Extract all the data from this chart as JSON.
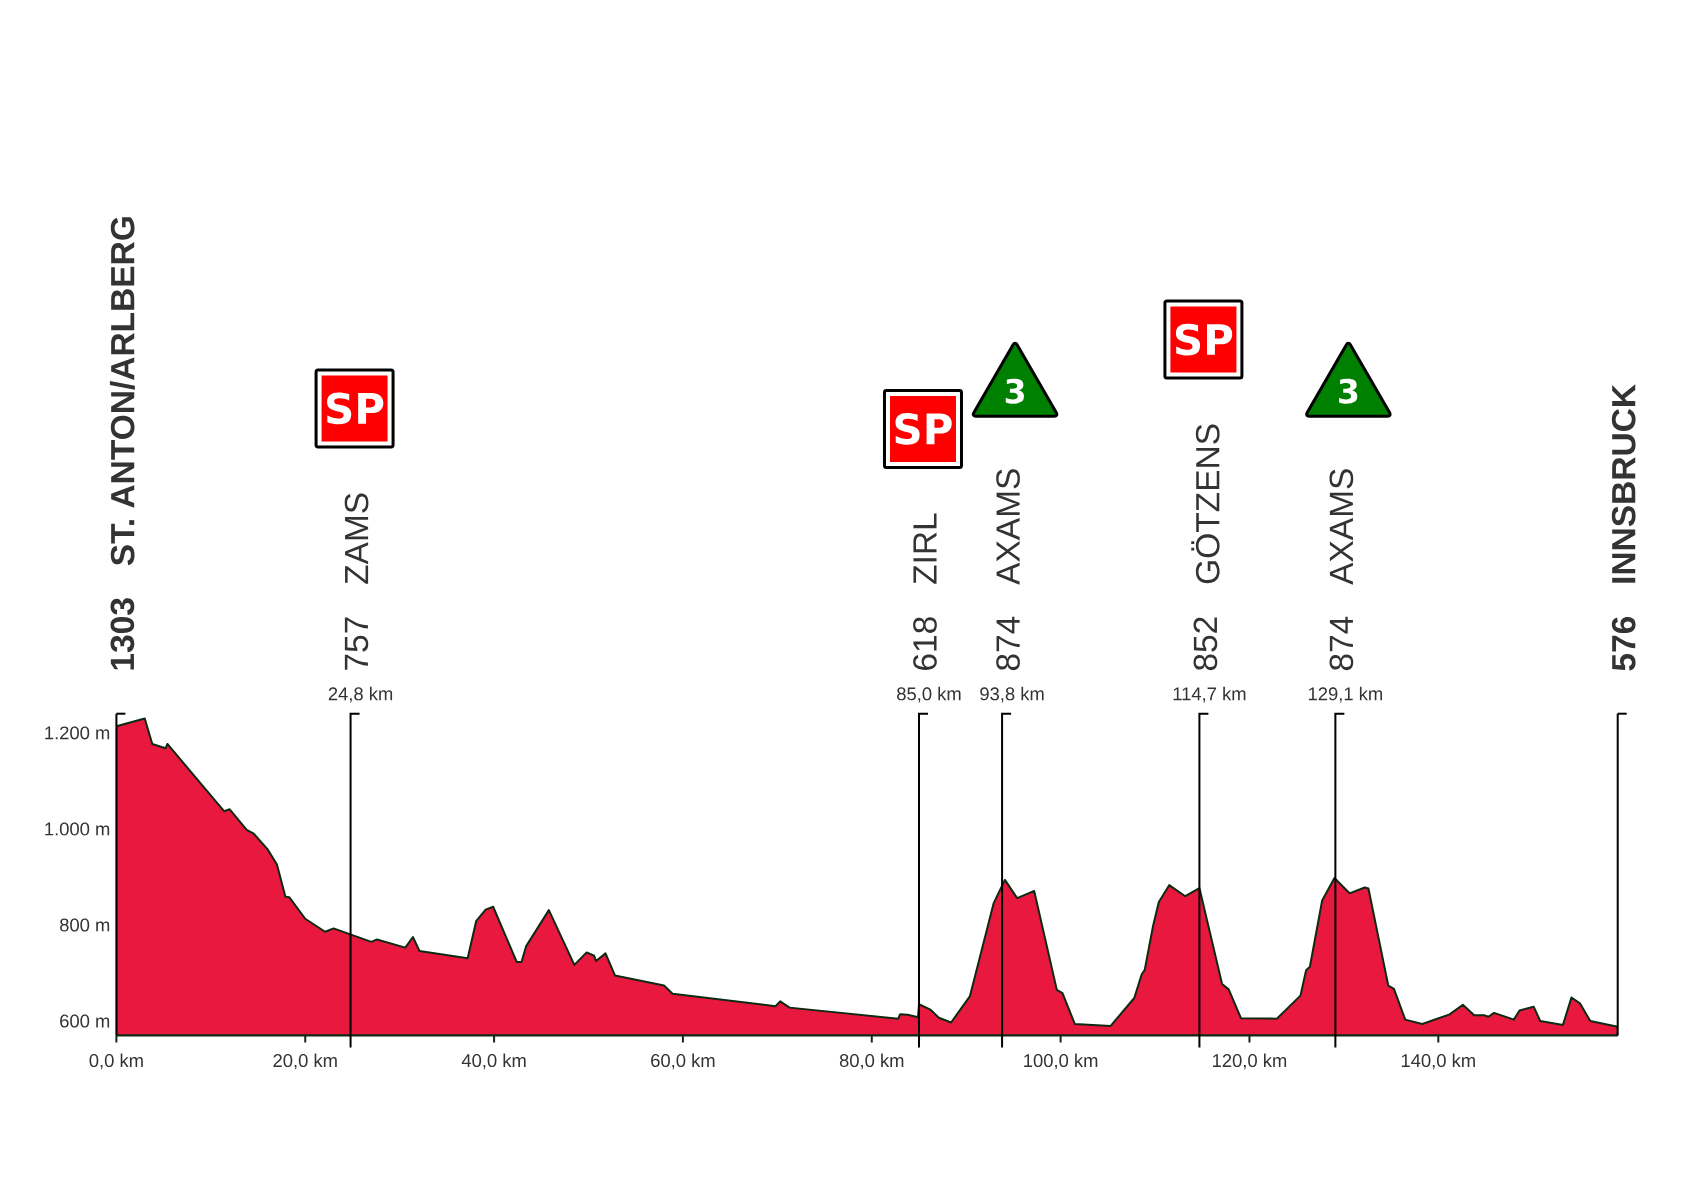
{
  "chart_data": {
    "type": "area",
    "color": "#e8183f",
    "x": [
      0,
      3.0,
      3.8,
      5.2,
      5.4,
      11.4,
      12.0,
      13.8,
      14.5,
      16.0,
      17.0,
      17.9,
      18.3,
      20.0,
      22.1,
      23.0,
      27.0,
      27.6,
      30.6,
      31.4,
      32.1,
      37.2,
      38.1,
      39.1,
      39.9,
      42.4,
      42.9,
      43.4,
      45.8,
      48.5,
      49.8,
      50.6,
      50.8,
      51.8,
      52.8,
      58.0,
      58.9,
      69.8,
      70.3,
      71.3,
      82.8,
      83.0,
      83.8,
      84.9,
      85.0,
      86.2,
      87.1,
      88.4,
      90.4,
      92.9,
      94.1,
      95.4,
      97.2,
      99.6,
      100.2,
      101.5,
      105.3,
      107.8,
      108.6,
      108.9,
      109.8,
      110.4,
      111.5,
      113.2,
      114.7,
      117.1,
      117.8,
      119.1,
      122.9,
      125.4,
      126.0,
      126.4,
      127.7,
      129.0,
      130.6,
      132.2,
      132.6,
      134.7,
      135.3,
      136.5,
      138.3,
      141.2,
      142.6,
      143.8,
      144.9,
      145.3,
      145.9,
      148.0,
      148.6,
      150.1,
      150.8,
      153.2,
      154.1,
      155.0,
      156.1,
      159
    ],
    "values": [
      1214,
      1230,
      1177,
      1168,
      1177,
      1037,
      1041,
      998,
      991,
      958,
      926,
      859,
      858,
      813,
      786,
      793,
      765,
      770,
      753,
      775,
      746,
      731,
      808,
      832,
      838,
      723,
      723,
      756,
      831,
      717,
      743,
      736,
      725,
      741,
      695,
      674,
      657,
      631,
      641,
      628,
      605,
      614,
      613,
      608,
      635,
      624,
      607,
      597,
      652,
      845,
      894,
      856,
      871,
      665,
      658,
      594,
      590,
      648,
      698,
      706,
      799,
      848,
      883,
      860,
      877,
      677,
      666,
      606,
      605,
      653,
      706,
      713,
      851,
      898,
      866,
      878,
      876,
      674,
      667,
      603,
      594,
      614,
      634,
      612,
      612,
      609,
      617,
      603,
      622,
      630,
      600,
      592,
      649,
      637,
      600,
      588
    ],
    "xlim": [
      0,
      159
    ],
    "ylim": [
      570,
      1240
    ],
    "xticks": [
      {
        "value": 0,
        "label": "0,0 km"
      },
      {
        "value": 20,
        "label": "20,0 km"
      },
      {
        "value": 40,
        "label": "40,0 km"
      },
      {
        "value": 60,
        "label": "60,0 km"
      },
      {
        "value": 80,
        "label": "80,0 km"
      },
      {
        "value": 100,
        "label": "100,0 km"
      },
      {
        "value": 120,
        "label": "120,0 km"
      },
      {
        "value": 140,
        "label": "140,0 km"
      }
    ],
    "yticks": [
      {
        "value": 600,
        "label": "600 m"
      },
      {
        "value": 800,
        "label": "800 m"
      },
      {
        "value": 1000,
        "label": "1.000 m"
      },
      {
        "value": 1200,
        "label": "1.200 m"
      }
    ],
    "ref_lines": [
      {
        "axis": "x",
        "value": 24.8,
        "label": "24,8 km"
      },
      {
        "axis": "x",
        "value": 85.0,
        "label": "85,0 km"
      },
      {
        "axis": "x",
        "value": 93.8,
        "label": "93,8 km"
      },
      {
        "axis": "x",
        "value": 114.7,
        "label": "114,7 km"
      },
      {
        "axis": "x",
        "value": 129.1,
        "label": "129,1 km"
      }
    ],
    "annotations": [
      "1303",
      "ST. ANTON/ARLBERG",
      "757",
      "ZAMS",
      "SP",
      "618",
      "ZIRL",
      "SP",
      "874",
      "AXAMS",
      "3",
      "852",
      "GÖTZENS",
      "SP",
      "874",
      "AXAMS",
      "3",
      "576",
      "INNSBRUCK"
    ]
  }
}
